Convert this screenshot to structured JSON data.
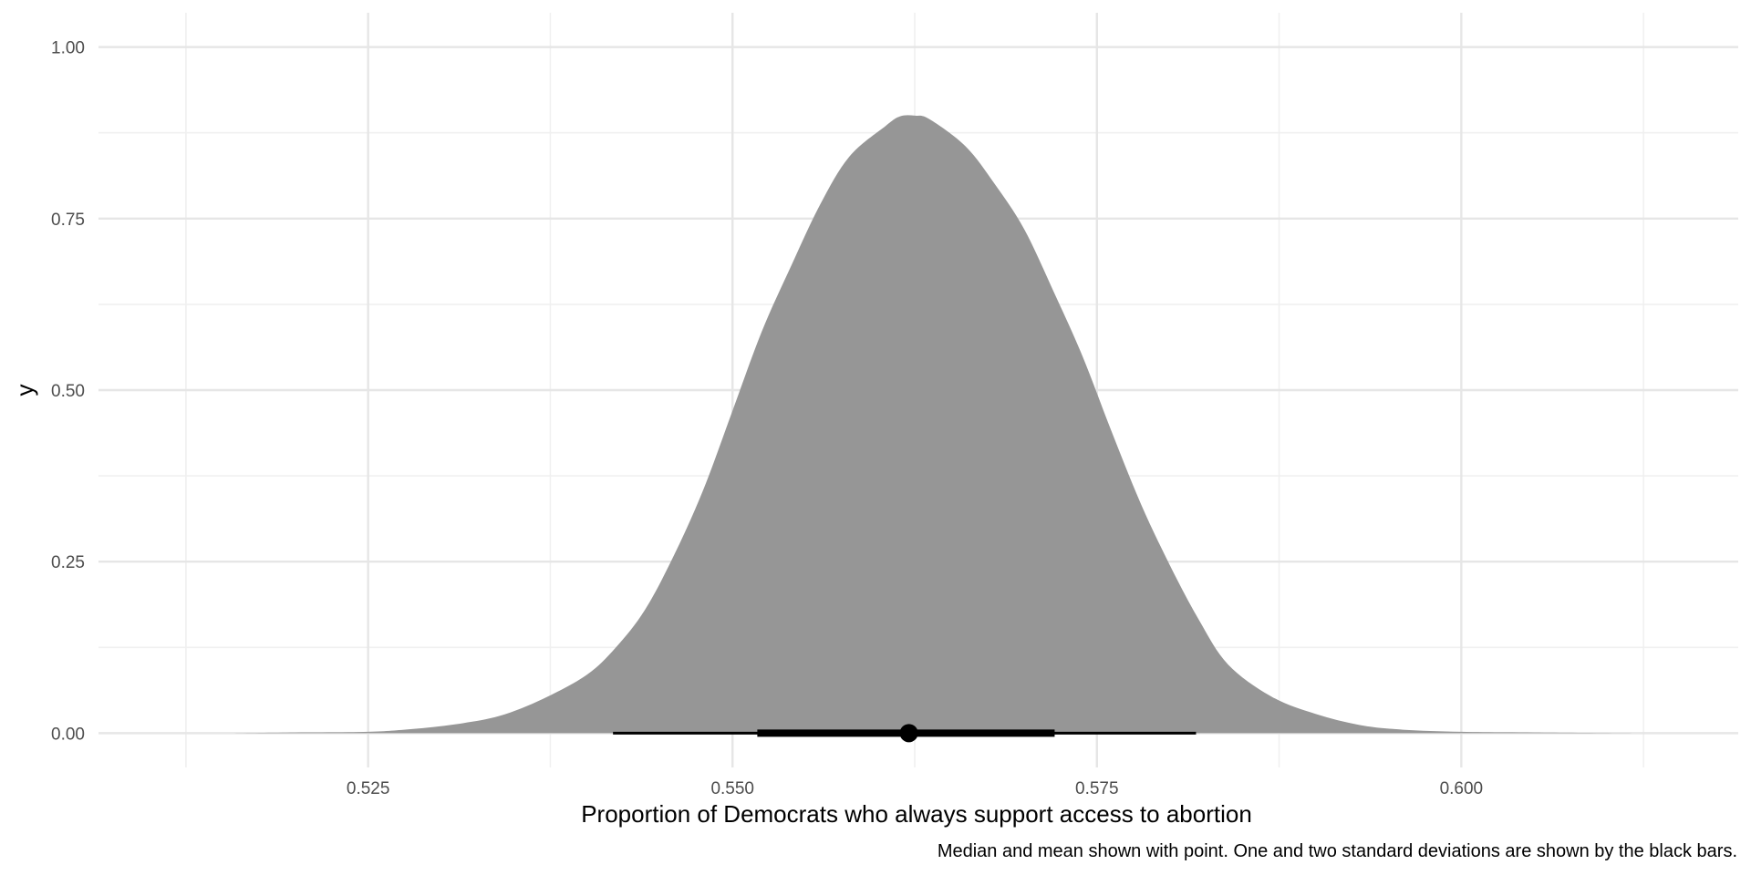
{
  "chart_data": {
    "type": "area",
    "subtype": "density with point-interval (halfeye)",
    "xlabel": "Proportion of Democrats who always support access to abortion",
    "ylabel": "y",
    "caption": "Median and mean shown with point. One and two standard deviations are shown by the black bars.",
    "x_ticks": [
      "0.525",
      "0.550",
      "0.575",
      "0.600"
    ],
    "x_tick_values": [
      0.525,
      0.55,
      0.575,
      0.6
    ],
    "y_ticks": [
      "0.00",
      "0.25",
      "0.50",
      "0.75",
      "1.00"
    ],
    "y_tick_values": [
      0,
      0.25,
      0.5,
      0.75,
      1.0
    ],
    "xlim": [
      0.5065,
      0.619
    ],
    "ylim": [
      -0.05,
      1.05
    ],
    "grid": true,
    "legend": "none",
    "density": {
      "color": "#969696",
      "x": [
        0.5155,
        0.52,
        0.525,
        0.528,
        0.531,
        0.534,
        0.537,
        0.54,
        0.542,
        0.544,
        0.546,
        0.548,
        0.55,
        0.552,
        0.554,
        0.556,
        0.558,
        0.5605,
        0.5615,
        0.5625,
        0.5635,
        0.566,
        0.568,
        0.57,
        0.572,
        0.574,
        0.576,
        0.578,
        0.58,
        0.582,
        0.584,
        0.587,
        0.59,
        0.593,
        0.596,
        0.6,
        0.605,
        0.612
      ],
      "y": [
        0.0,
        0.001,
        0.002,
        0.006,
        0.013,
        0.025,
        0.05,
        0.085,
        0.125,
        0.18,
        0.26,
        0.355,
        0.47,
        0.585,
        0.68,
        0.77,
        0.84,
        0.885,
        0.899,
        0.9,
        0.895,
        0.855,
        0.8,
        0.735,
        0.645,
        0.55,
        0.44,
        0.335,
        0.245,
        0.165,
        0.1,
        0.053,
        0.028,
        0.012,
        0.005,
        0.002,
        0.001,
        0.0
      ]
    },
    "point": {
      "x": 0.5621,
      "y": 0
    },
    "interval_1sd": [
      0.5517,
      0.5721
    ],
    "interval_2sd": [
      0.5418,
      0.5818
    ],
    "ink_color": "#000000"
  }
}
